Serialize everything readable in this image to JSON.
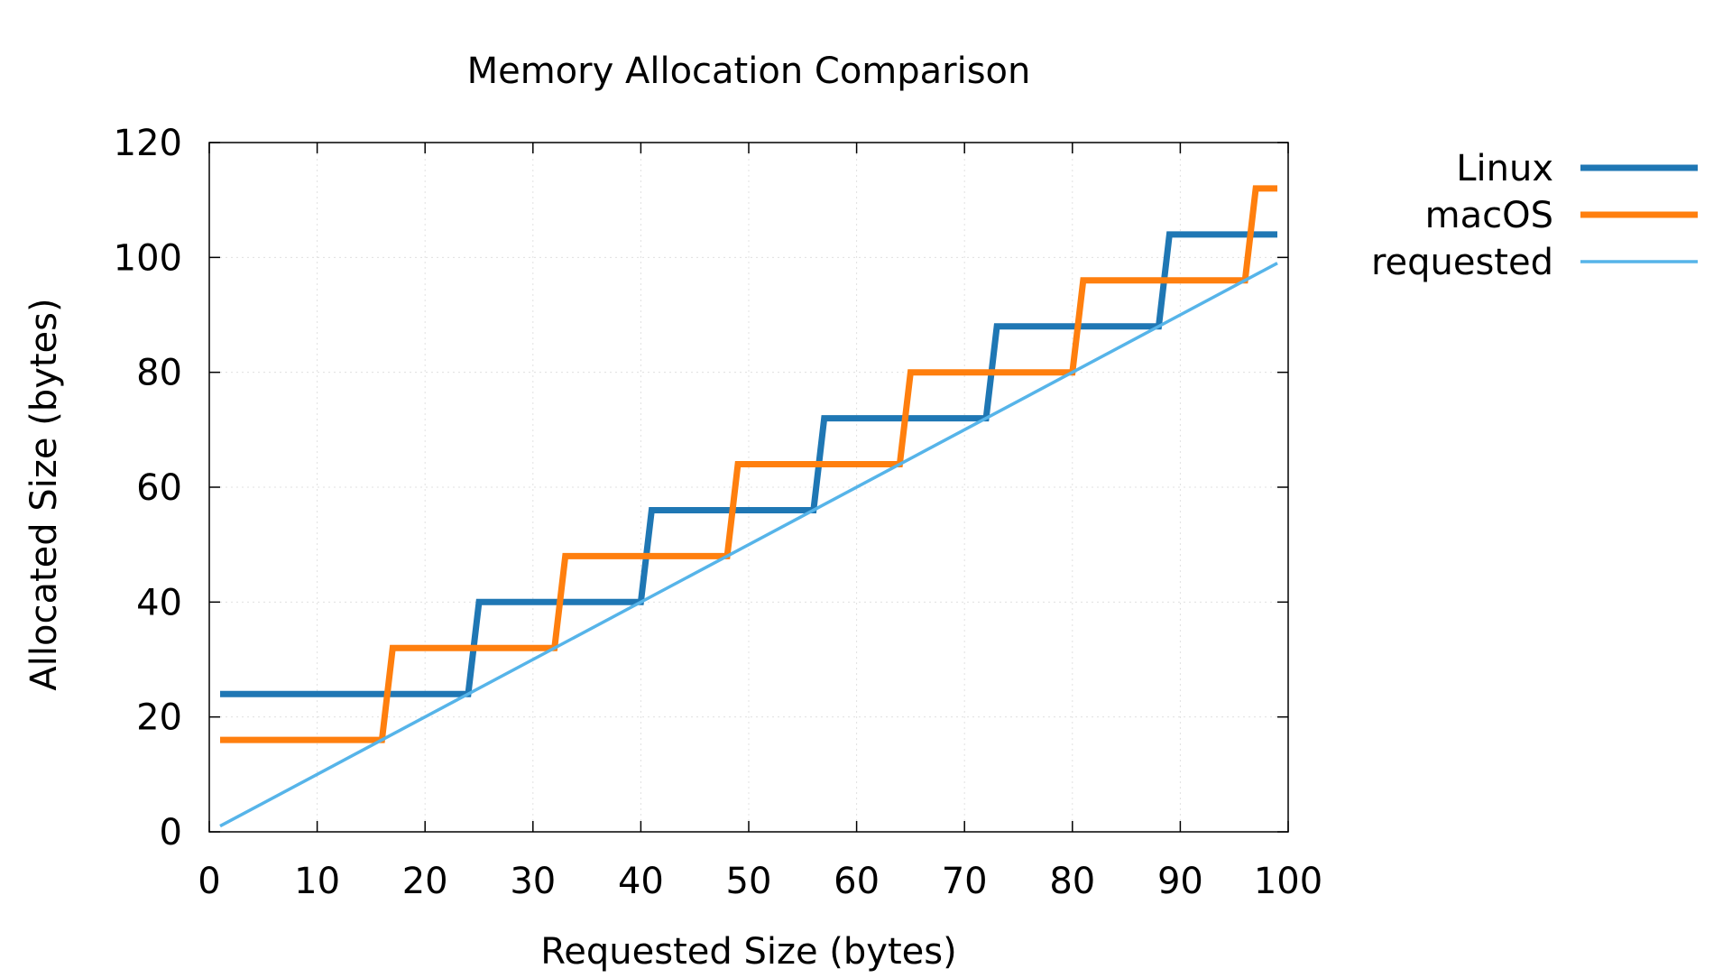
{
  "chart_data": {
    "type": "line",
    "title": "Memory Allocation Comparison",
    "xlabel": "Requested Size (bytes)",
    "ylabel": "Allocated Size (bytes)",
    "xlim": [
      0,
      100
    ],
    "ylim": [
      0,
      120
    ],
    "x_ticks": [
      "0",
      "10",
      "20",
      "30",
      "40",
      "50",
      "60",
      "70",
      "80",
      "90",
      "100"
    ],
    "y_ticks": [
      "0",
      "20",
      "40",
      "60",
      "80",
      "100",
      "120"
    ],
    "grid": true,
    "legend_position": "outside-right-top",
    "series": [
      {
        "name": "Linux",
        "color": "#1f77b4",
        "style": "step",
        "x": [
          1,
          24,
          25,
          40,
          41,
          56,
          57,
          72,
          73,
          88,
          89,
          99
        ],
        "y": [
          24,
          24,
          40,
          40,
          56,
          56,
          72,
          72,
          88,
          88,
          104,
          104
        ]
      },
      {
        "name": "macOS",
        "color": "#ff7f0e",
        "style": "step",
        "x": [
          1,
          16,
          17,
          32,
          33,
          48,
          49,
          64,
          65,
          80,
          81,
          96,
          97,
          99
        ],
        "y": [
          16,
          16,
          32,
          32,
          48,
          48,
          64,
          64,
          80,
          80,
          96,
          96,
          112,
          112
        ]
      },
      {
        "name": "requested",
        "color": "#56b4e9",
        "style": "line",
        "x": [
          1,
          99
        ],
        "y": [
          1,
          99
        ]
      }
    ]
  }
}
